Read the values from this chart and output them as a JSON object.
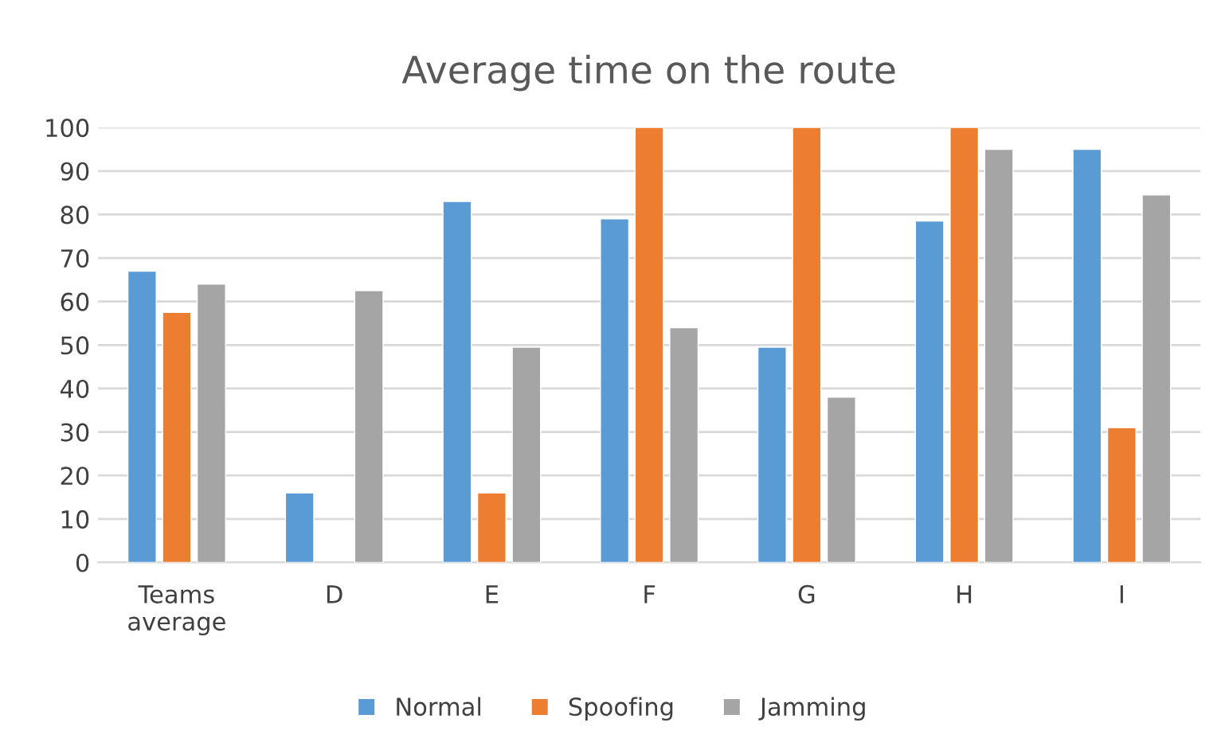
{
  "chart_data": {
    "type": "bar",
    "title": "Average time on the route",
    "categories": [
      "Teams\naverage",
      "D",
      "E",
      "F",
      "G",
      "H",
      "I"
    ],
    "series": [
      {
        "name": "Normal",
        "color": "#5b9bd5",
        "values": [
          67,
          16,
          83,
          79,
          49.5,
          78.5,
          95
        ]
      },
      {
        "name": "Spoofing",
        "color": "#ed7d31",
        "values": [
          57.5,
          null,
          16,
          100,
          100,
          100,
          31
        ]
      },
      {
        "name": "Jamming",
        "color": "#a5a5a5",
        "values": [
          64,
          62.5,
          49.5,
          54,
          38,
          95,
          84.5
        ]
      }
    ],
    "ylim": [
      0,
      100
    ],
    "yticks": [
      0,
      10,
      20,
      30,
      40,
      50,
      60,
      70,
      80,
      90,
      100
    ],
    "grid": "y",
    "legend": "bottom"
  }
}
